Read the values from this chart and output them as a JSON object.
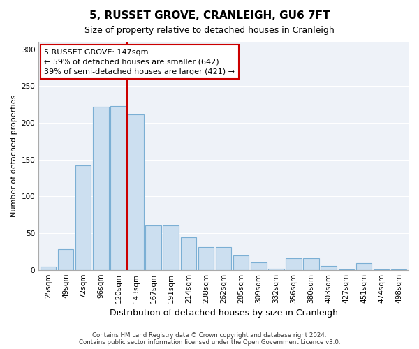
{
  "title": "5, RUSSET GROVE, CRANLEIGH, GU6 7FT",
  "subtitle": "Size of property relative to detached houses in Cranleigh",
  "xlabel": "Distribution of detached houses by size in Cranleigh",
  "ylabel": "Number of detached properties",
  "bar_labels": [
    "25sqm",
    "49sqm",
    "72sqm",
    "96sqm",
    "120sqm",
    "143sqm",
    "167sqm",
    "191sqm",
    "214sqm",
    "238sqm",
    "262sqm",
    "285sqm",
    "309sqm",
    "332sqm",
    "356sqm",
    "380sqm",
    "403sqm",
    "427sqm",
    "451sqm",
    "474sqm",
    "498sqm"
  ],
  "bar_heights": [
    4,
    28,
    142,
    222,
    223,
    211,
    60,
    60,
    44,
    31,
    31,
    20,
    10,
    2,
    16,
    16,
    5,
    1,
    9,
    1,
    1
  ],
  "bar_color": "#ccdff0",
  "bar_edgecolor": "#7bafd4",
  "vline_color": "#cc0000",
  "vline_pos": 4.5,
  "ylim": [
    0,
    310
  ],
  "yticks": [
    0,
    50,
    100,
    150,
    200,
    250,
    300
  ],
  "annotation_title": "5 RUSSET GROVE: 147sqm",
  "annotation_line1": "← 59% of detached houses are smaller (642)",
  "annotation_line2": "39% of semi-detached houses are larger (421) →",
  "footer1": "Contains HM Land Registry data © Crown copyright and database right 2024.",
  "footer2": "Contains public sector information licensed under the Open Government Licence v3.0.",
  "bg_color": "#ffffff",
  "plot_bg_color": "#eef2f8",
  "grid_color": "#ffffff",
  "title_fontsize": 11,
  "subtitle_fontsize": 9,
  "ylabel_fontsize": 8,
  "xlabel_fontsize": 9,
  "tick_fontsize": 7.5,
  "ann_fontsize": 8
}
